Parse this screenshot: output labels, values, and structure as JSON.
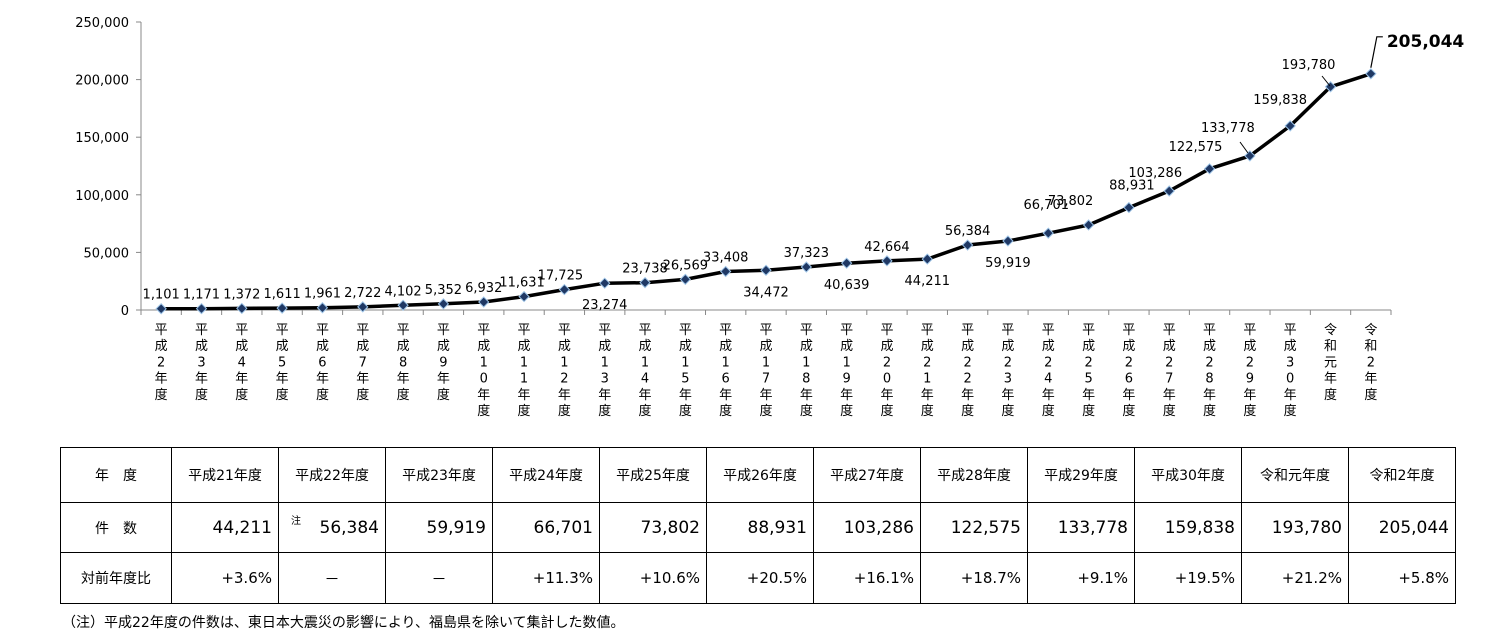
{
  "chart_data": {
    "type": "line",
    "categories": [
      "平成2年度",
      "平成3年度",
      "平成4年度",
      "平成5年度",
      "平成6年度",
      "平成7年度",
      "平成8年度",
      "平成9年度",
      "平成10年度",
      "平成11年度",
      "平成12年度",
      "平成13年度",
      "平成14年度",
      "平成15年度",
      "平成16年度",
      "平成17年度",
      "平成18年度",
      "平成19年度",
      "平成20年度",
      "平成21年度",
      "平成22年度",
      "平成23年度",
      "平成24年度",
      "平成25年度",
      "平成26年度",
      "平成27年度",
      "平成28年度",
      "平成29年度",
      "平成30年度",
      "令和元年度",
      "令和2年度"
    ],
    "values": [
      1101,
      1171,
      1372,
      1611,
      1961,
      2722,
      4102,
      5352,
      6932,
      11631,
      17725,
      23274,
      23738,
      26569,
      33408,
      34472,
      37323,
      40639,
      42664,
      44211,
      56384,
      59919,
      66701,
      73802,
      88931,
      103286,
      122575,
      133778,
      159838,
      193780,
      205044
    ],
    "value_labels": [
      "1,101",
      "1,171",
      "1,372",
      "1,611",
      "1,961",
      "2,722",
      "4,102",
      "5,352",
      "6,932",
      "11,631",
      "17,725",
      "23,274",
      "23,738",
      "26,569",
      "33,408",
      "34,472",
      "37,323",
      "40,639",
      "42,664",
      "44,211",
      "56,384",
      "59,919",
      "66,701",
      "73,802",
      "88,931",
      "103,286",
      "122,575",
      "133,778",
      "159,838",
      "193,780",
      "205,044"
    ],
    "ylim": [
      0,
      250000
    ],
    "yticks": [
      0,
      50000,
      100000,
      150000,
      200000,
      250000
    ],
    "ytick_labels": [
      "0",
      "50,000",
      "100,000",
      "150,000",
      "200,000",
      "250,000"
    ],
    "line_color": "#000000",
    "marker_color": "#1f3864",
    "grid": false
  },
  "table": {
    "header_label": "年　度",
    "count_label": "件　数",
    "ratio_label": "対前年度比",
    "years": [
      "平成21年度",
      "平成22年度",
      "平成23年度",
      "平成24年度",
      "平成25年度",
      "平成26年度",
      "平成27年度",
      "平成28年度",
      "平成29年度",
      "平成30年度",
      "令和元年度",
      "令和2年度"
    ],
    "counts": [
      "44,211",
      "56,384",
      "59,919",
      "66,701",
      "73,802",
      "88,931",
      "103,286",
      "122,575",
      "133,778",
      "159,838",
      "193,780",
      "205,044"
    ],
    "count_note": "注",
    "ratios": [
      "+3.6%",
      "－",
      "－",
      "+11.3%",
      "+10.6%",
      "+20.5%",
      "+16.1%",
      "+18.7%",
      "+9.1%",
      "+19.5%",
      "+21.2%",
      "+5.8%"
    ]
  },
  "footnote": "（注）平成22年度の件数は、東日本大震災の影響により、福島県を除いて集計した数値。"
}
